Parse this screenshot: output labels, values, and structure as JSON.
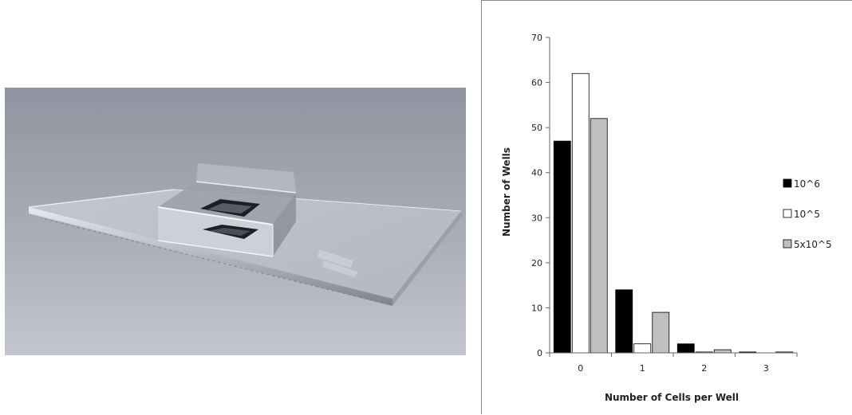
{
  "photo": {
    "subject": "microwell-chip-photo"
  },
  "chart_data": {
    "type": "bar",
    "categories": [
      "0",
      "1",
      "2",
      "3"
    ],
    "series": [
      {
        "name": "10^6",
        "values": [
          47,
          14,
          2,
          0.2
        ],
        "color": "#000000"
      },
      {
        "name": "10^5",
        "values": [
          62,
          2,
          0.2,
          0
        ],
        "color": "#ffffff"
      },
      {
        "name": "5x10^5",
        "values": [
          52,
          9,
          0.7,
          0.2
        ],
        "color": "#bfbfbf"
      }
    ],
    "xlabel": "Number of Cells per Well",
    "ylabel": "Number of Wells",
    "ylim": [
      0,
      70
    ],
    "yticks": [
      "0",
      "10",
      "20",
      "30",
      "40",
      "50",
      "60",
      "70"
    ],
    "grid": false,
    "legend_position": "right"
  }
}
